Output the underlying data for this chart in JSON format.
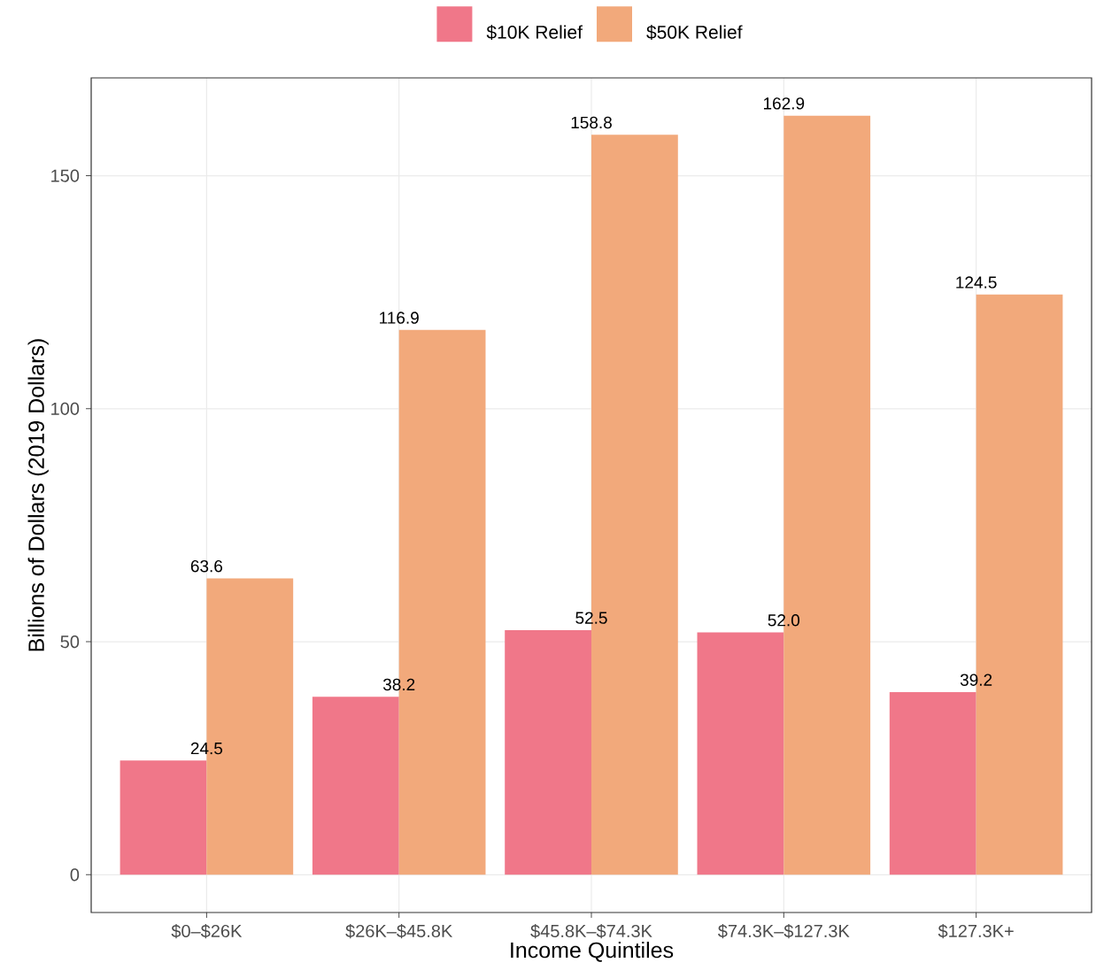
{
  "chart_data": {
    "type": "bar",
    "xlabel": "Income Quintiles",
    "ylabel": "Billions of Dollars (2019 Dollars)",
    "categories": [
      "$0–$26K",
      "$26K–$45.8K",
      "$45.8K–$74.3K",
      "$74.3K–$127.3K",
      "$127.3K+"
    ],
    "series": [
      {
        "name": "$10K Relief",
        "color": "#f07789",
        "values": [
          24.5,
          38.2,
          52.5,
          52.0,
          39.2
        ],
        "value_labels": [
          "24.5",
          "38.2",
          "52.5",
          "52.0",
          "39.2"
        ]
      },
      {
        "name": "$50K Relief",
        "color": "#f2a97b",
        "values": [
          63.6,
          116.9,
          158.8,
          162.9,
          124.5
        ],
        "value_labels": [
          "63.6",
          "116.9",
          "158.8",
          "162.9",
          "124.5"
        ]
      }
    ],
    "ylim": [
      -8.1,
      171
    ],
    "yticks": [
      0,
      50,
      100,
      150
    ],
    "grid": true,
    "legend": "top",
    "data_labels": true
  }
}
